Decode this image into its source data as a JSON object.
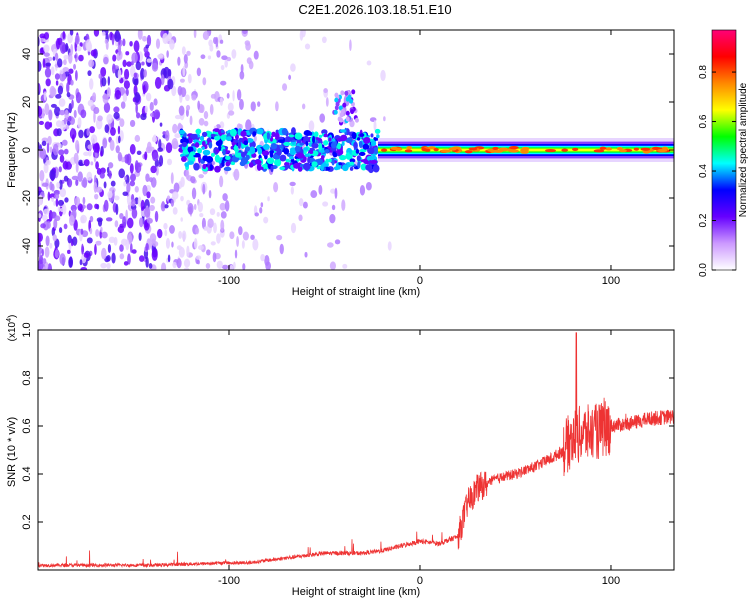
{
  "title": "C2E1.2026.103.18.51.E10",
  "chart_data": [
    {
      "type": "heatmap",
      "xlabel": "Height of straight line (km)",
      "ylabel": "Frequency (Hz)",
      "xlim": [
        -200,
        133
      ],
      "ylim": [
        -50,
        50
      ],
      "xticks": [
        -100,
        0,
        100
      ],
      "yticks": [
        -40,
        -20,
        0,
        20,
        40
      ],
      "colorbar": {
        "label": "Normalized spectral amplitude",
        "range": [
          0,
          0.97
        ],
        "ticks": [
          "0.0",
          "0.2",
          "0.4",
          "0.6",
          "0.8"
        ],
        "colors": [
          "#ffffff",
          "#cc99ff",
          "#6600ff",
          "#0000ff",
          "#00ffff",
          "#00ff00",
          "#ffff00",
          "#ff8800",
          "#ff0000",
          "#ff0077"
        ]
      },
      "regions": [
        {
          "x": [
            -200,
            -125
          ],
          "freq": [
            -50,
            50
          ],
          "amplitude": "scattered 0.0-0.2"
        },
        {
          "x": [
            -125,
            -22
          ],
          "freq": [
            -8,
            8
          ],
          "amplitude": "0.1-0.3"
        },
        {
          "x": [
            -45,
            -35
          ],
          "freq": [
            10,
            25
          ],
          "amplitude": "0.1-0.3"
        },
        {
          "x": [
            -22,
            133
          ],
          "freq": [
            -3,
            3
          ],
          "amplitude": "0.3-0.9"
        }
      ]
    },
    {
      "type": "line",
      "xlabel": "Height of straight line (km)",
      "ylabel": "SNR (10 * v/v)",
      "yscale_label": "(x10^4)",
      "yscale_base": "(x10",
      "yscale_exp": "4",
      "xlim": [
        -200,
        133
      ],
      "ylim": [
        0,
        1.0
      ],
      "xticks": [
        -100,
        0,
        100
      ],
      "yticks": [
        "0.2",
        "0.4",
        "0.6",
        "0.8",
        "1.0"
      ],
      "series": [
        {
          "color": "#ee3333",
          "x": [
            -200,
            -180,
            -160,
            -140,
            -120,
            -100,
            -90,
            -80,
            -70,
            -60,
            -50,
            -40,
            -30,
            -20,
            -10,
            0,
            10,
            20,
            25,
            30,
            35,
            40,
            50,
            60,
            70,
            75,
            80,
            85,
            90,
            95,
            100,
            110,
            120,
            133
          ],
          "y": [
            0.02,
            0.02,
            0.02,
            0.02,
            0.025,
            0.03,
            0.03,
            0.04,
            0.05,
            0.06,
            0.07,
            0.07,
            0.07,
            0.08,
            0.1,
            0.12,
            0.11,
            0.14,
            0.28,
            0.34,
            0.36,
            0.38,
            0.4,
            0.43,
            0.47,
            0.5,
            0.55,
            0.57,
            0.57,
            0.58,
            0.6,
            0.61,
            0.63,
            0.64
          ]
        }
      ]
    }
  ]
}
